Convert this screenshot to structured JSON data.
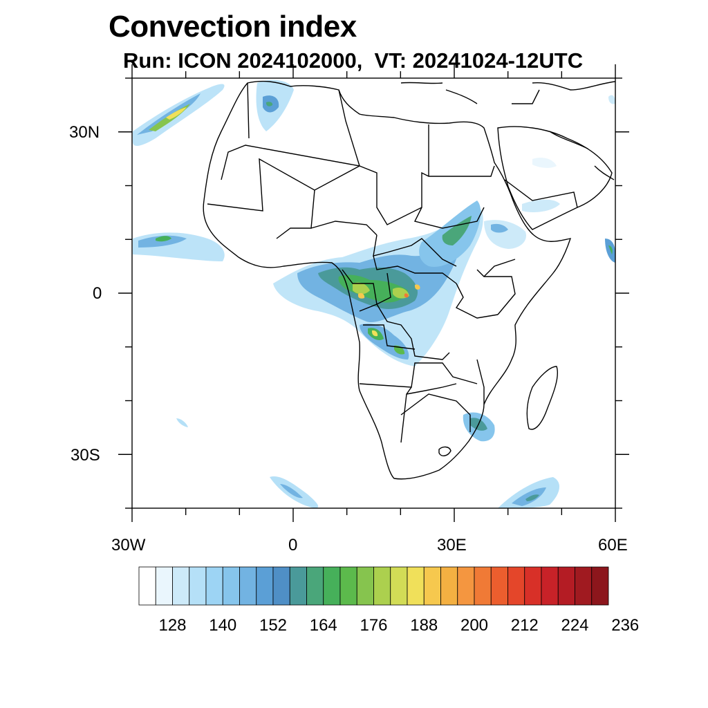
{
  "title": "Convection index",
  "subtitle": "Run: ICON 2024102000,  VT: 20241024-12UTC",
  "map": {
    "lon_range": [
      -30,
      60
    ],
    "lat_range": [
      -40,
      40
    ],
    "lat_labels": [
      "30N",
      "0",
      "30S"
    ],
    "lon_labels": [
      "30W",
      "0",
      "30E",
      "60E"
    ]
  },
  "colorbar": {
    "labels": [
      "128",
      "140",
      "152",
      "164",
      "176",
      "188",
      "200",
      "212",
      "224",
      "236"
    ],
    "colors": [
      "#ffffff",
      "#eaf6fd",
      "#cdeaf9",
      "#b5e0f7",
      "#9dd4f4",
      "#86c5ec",
      "#72b3e2",
      "#5b9fd6",
      "#4f8fc6",
      "#4a9a9a",
      "#4aa67a",
      "#46b05a",
      "#5cba4c",
      "#86c44e",
      "#acd04e",
      "#d2dc56",
      "#f0e05a",
      "#f6c84e",
      "#f4b042",
      "#f49640",
      "#f07a36",
      "#ec5e2e",
      "#e4462a",
      "#d83028",
      "#c82228",
      "#b41c24",
      "#a01a20",
      "#8c161c"
    ]
  }
}
